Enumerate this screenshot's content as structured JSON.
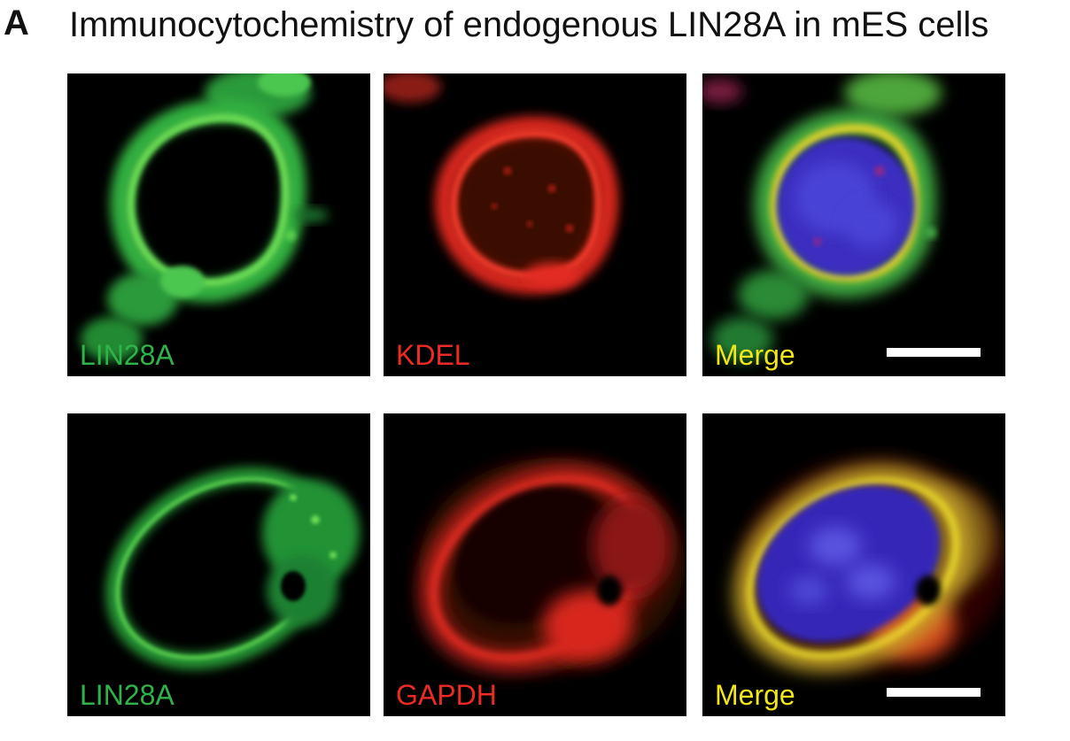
{
  "figure": {
    "panel_letter": "A",
    "title": "Immunocytochemistry of endogenous LIN28A in mES cells"
  },
  "colors": {
    "green_channel": "#2fb34a",
    "red_channel": "#ee2a24",
    "merge_label": "#f2e61a",
    "nucleus_blue": "#3a2fc0",
    "background": "#000000",
    "scale_bar": "#ffffff"
  },
  "rows": [
    {
      "panels": [
        {
          "label": "LIN28A",
          "channel": "green"
        },
        {
          "label": "KDEL",
          "channel": "red"
        },
        {
          "label": "Merge",
          "channel": "merge",
          "has_scale_bar": true
        }
      ]
    },
    {
      "panels": [
        {
          "label": "LIN28A",
          "channel": "green"
        },
        {
          "label": "GAPDH",
          "channel": "red"
        },
        {
          "label": "Merge",
          "channel": "merge",
          "has_scale_bar": true
        }
      ]
    }
  ]
}
